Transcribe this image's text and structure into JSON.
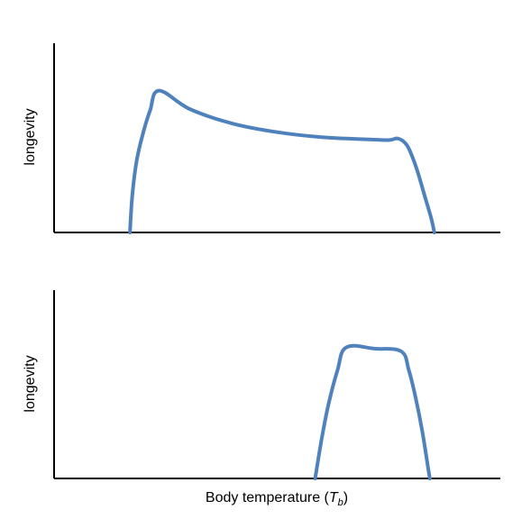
{
  "colors": {
    "series": "#4f81bd",
    "axis": "#000000"
  },
  "chart_data": [
    {
      "type": "line",
      "title": "",
      "xlabel": "",
      "ylabel": "longevity",
      "xlim": [
        0,
        1
      ],
      "ylim": [
        0,
        1
      ],
      "grid": false,
      "series": [
        {
          "x": [
            0.17,
            0.175,
            0.185,
            0.2,
            0.215,
            0.235,
            0.305,
            0.4,
            0.5,
            0.6,
            0.7,
            0.75,
            0.77,
            0.788,
            0.8,
            0.815,
            0.83,
            0.845,
            0.852
          ],
          "y": [
            0.0,
            0.25,
            0.5,
            0.7,
            0.85,
            0.99,
            0.86,
            0.76,
            0.7,
            0.665,
            0.65,
            0.645,
            0.656,
            0.62,
            0.55,
            0.42,
            0.26,
            0.1,
            0.0
          ]
        }
      ]
    },
    {
      "type": "line",
      "title": "",
      "xlabel": "Body temperature (",
      "xlabel_sym": "T",
      "xlabel_sub": "b",
      "xlabel_tail": ")",
      "ylabel": "longevity",
      "xlim": [
        0,
        1
      ],
      "ylim": [
        0,
        1
      ],
      "grid": false,
      "series": [
        {
          "x": [
            0.585,
            0.6,
            0.615,
            0.635,
            0.655,
            0.72,
            0.778,
            0.795,
            0.81,
            0.825,
            0.838,
            0.842
          ],
          "y": [
            0.0,
            0.3,
            0.55,
            0.8,
            0.97,
            0.96,
            0.94,
            0.8,
            0.6,
            0.35,
            0.08,
            0.0
          ]
        }
      ]
    }
  ]
}
